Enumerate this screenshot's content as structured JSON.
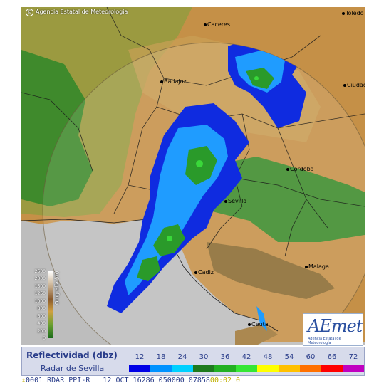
{
  "attribution": "Agencia Estatal de Meteorología",
  "cities": [
    {
      "name": "Caceres"
    },
    {
      "name": "Toledo"
    },
    {
      "name": "Badajoz"
    },
    {
      "name": "Ciudad Real"
    },
    {
      "name": "Cordoba"
    },
    {
      "name": "Sevilla"
    },
    {
      "name": "Cadiz"
    },
    {
      "name": "Malaga"
    },
    {
      "name": "Ceuta"
    }
  ],
  "orography_legend": {
    "title": "Orografía (m)",
    "levels": [
      "2500",
      "2000",
      "1500",
      "1250",
      "1000",
      "800",
      "600",
      "400",
      "200",
      "0"
    ]
  },
  "logo": {
    "text": "AEmet",
    "subtitle": "Agencia Estatal de Meteorología"
  },
  "reflectivity_legend": {
    "title": "Reflectividad (dbz)",
    "radar_name": "Radar de Sevilla",
    "values": [
      "12",
      "18",
      "24",
      "30",
      "36",
      "42",
      "48",
      "54",
      "60",
      "66",
      "72"
    ],
    "colors": [
      "#0000e6",
      "#0092ff",
      "#00d0ff",
      "#1e7a1e",
      "#22b022",
      "#35e635",
      "#ffff00",
      "#ffc000",
      "#ff7000",
      "#ff0000",
      "#c000c0"
    ]
  },
  "status_bar": {
    "left": "0001 RDAR_PPI-R   12 OCT 16286 050000 07858",
    "right": "00:02 0"
  }
}
